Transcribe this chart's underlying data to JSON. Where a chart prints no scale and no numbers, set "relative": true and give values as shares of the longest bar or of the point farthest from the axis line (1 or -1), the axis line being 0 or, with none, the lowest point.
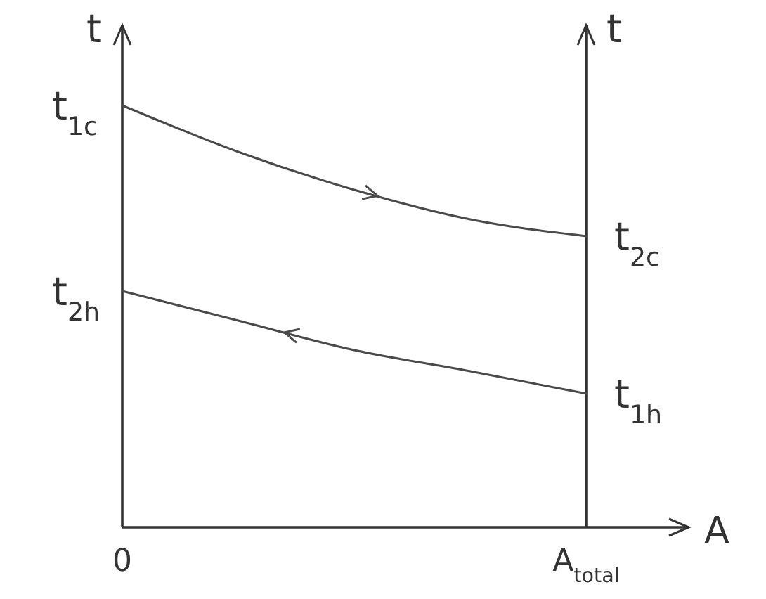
{
  "chart_data": {
    "type": "line",
    "relative": true,
    "xlabel": "A",
    "ylabel": "t",
    "y2label": "t",
    "categories": [
      "0",
      null,
      null,
      null,
      "A$_{total}$"
    ],
    "series": [
      {
        "color": "#4a4a4a",
        "values": [
          1,
          0.89,
          0.8,
          0.73,
          0.69
        ]
      },
      {
        "color": "#4a4a4a",
        "values": [
          0.56,
          0.49,
          0.42,
          0.37,
          0.317
        ]
      }
    ],
    "annotations": [
      {
        "text": "t$_{1c}$",
        "x": "0",
        "y": 1
      },
      {
        "text": "t$_{2c}$",
        "x": "A$_{total}$",
        "y": 0.69
      },
      {
        "text": "t$_{2h}$",
        "x": "0",
        "y": 0.56
      },
      {
        "text": "t$_{1h}$",
        "x": "A$_{total}$",
        "y": 0.317
      }
    ],
    "tick_labels": "x",
    "marker": "none",
    "line_style": "solid"
  }
}
